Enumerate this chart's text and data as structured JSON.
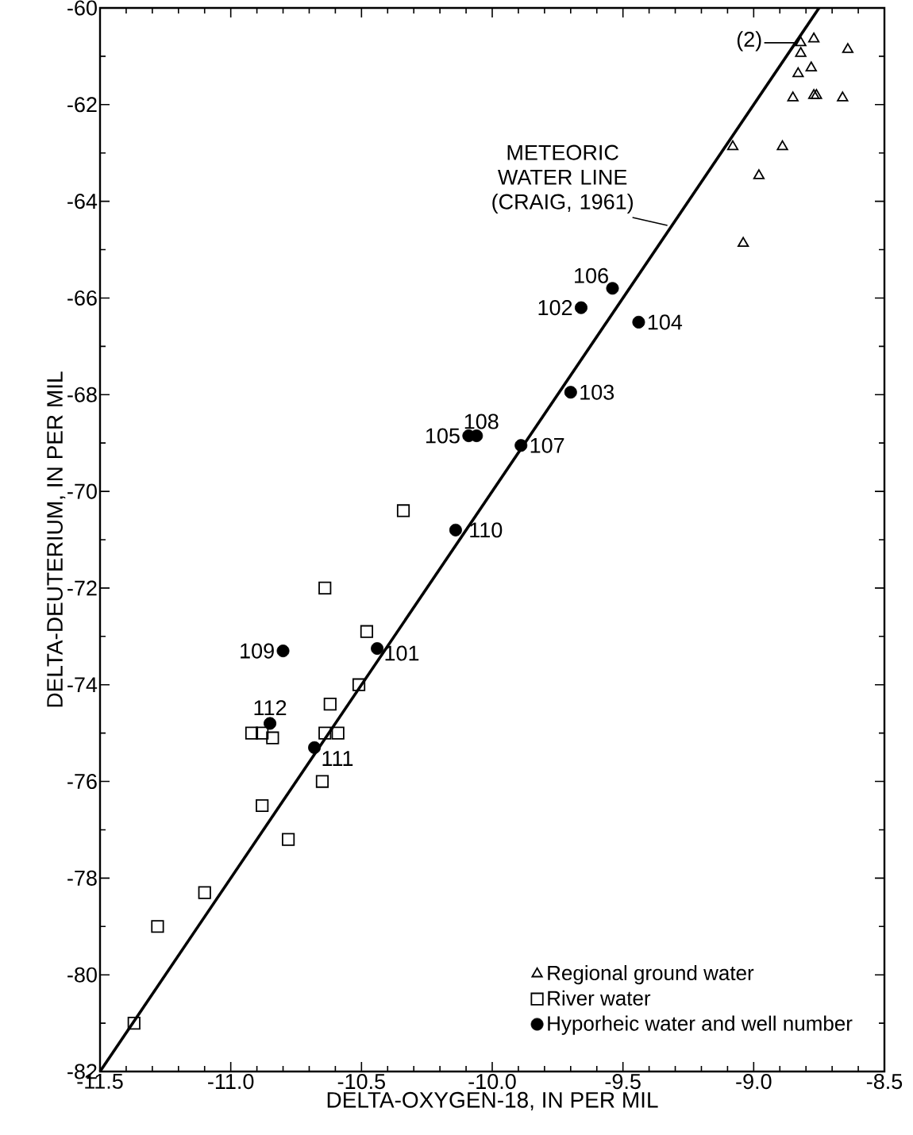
{
  "chart_data": {
    "type": "scatter",
    "xlabel": "DELTA-OXYGEN-18, IN PER MIL",
    "ylabel": "DELTA-DEUTERIUM, IN PER MIL",
    "xlim": [
      -11.5,
      -8.5
    ],
    "ylim": [
      -82,
      -60
    ],
    "xticks": [
      {
        "value": -11.5,
        "label": "-11.5"
      },
      {
        "value": -11,
        "label": "-11.0"
      },
      {
        "value": -10.5,
        "label": "-10.5"
      },
      {
        "value": -10,
        "label": "-10.0"
      },
      {
        "value": -9.5,
        "label": "-9.5"
      },
      {
        "value": -9,
        "label": "-9.0"
      },
      {
        "value": -8.5,
        "label": "-8.5"
      }
    ],
    "yticks": [
      -82,
      -80,
      -78,
      -76,
      -74,
      -72,
      -70,
      -68,
      -66,
      -64,
      -62,
      -60
    ],
    "legend": "bottom right",
    "series": [
      {
        "name": "Regional ground water",
        "color": "#000000",
        "marker": "triangle",
        "x": [
          -8.82,
          -8.77,
          -8.82,
          -8.64,
          -8.78,
          -8.83,
          -8.85,
          -8.77,
          -8.76,
          -8.66,
          -9.08,
          -8.89,
          -8.98,
          -9.04
        ],
        "values": [
          -60.72,
          -60.64,
          -60.94,
          -60.86,
          -61.24,
          -61.36,
          -61.86,
          -61.81,
          -61.81,
          -61.86,
          -62.87,
          -62.87,
          -63.47,
          -64.87
        ]
      },
      {
        "name": "River water",
        "color": "#000000",
        "marker": "square",
        "x": [
          -10.34,
          -10.64,
          -10.48,
          -10.51,
          -10.62,
          -10.92,
          -10.88,
          -10.84,
          -10.64,
          -10.59,
          -10.65,
          -10.88,
          -10.78,
          -11.1,
          -11.28,
          -11.37
        ],
        "values": [
          -70.4,
          -72.0,
          -72.9,
          -74.0,
          -74.4,
          -75.0,
          -75.0,
          -75.1,
          -75.0,
          -75.0,
          -76.0,
          -76.5,
          -77.2,
          -78.3,
          -79.0,
          -81.0
        ]
      },
      {
        "name": "Hyporheic water and well number",
        "color": "#000000",
        "marker": "circle",
        "x": [
          -10.44,
          -9.66,
          -9.7,
          -9.44,
          -10.09,
          -9.54,
          -9.89,
          -10.06,
          -10.8,
          -10.14,
          -10.68,
          -10.85
        ],
        "values": [
          -73.25,
          -66.2,
          -67.95,
          -66.5,
          -68.85,
          -65.8,
          -69.05,
          -68.85,
          -73.3,
          -70.8,
          -75.3,
          -74.8
        ]
      },
      {
        "type": "line",
        "color": "#000000",
        "marker": "none",
        "x": [
          -11.5,
          -8.75
        ],
        "values": [
          -82,
          -60
        ]
      }
    ],
    "annotations": [
      {
        "text": "METEORIC WATER LINE (CRAIG, 1961)",
        "x": -9.33,
        "y": -64.5
      },
      {
        "text": "(2)",
        "x": -8.82,
        "y": -60.72
      },
      {
        "text": "101",
        "x": -10.44,
        "y": -73.25
      },
      {
        "text": "102",
        "x": -9.66,
        "y": -66.2
      },
      {
        "text": "103",
        "x": -9.7,
        "y": -67.95
      },
      {
        "text": "104",
        "x": -9.44,
        "y": -66.5
      },
      {
        "text": "105",
        "x": -10.09,
        "y": -68.85
      },
      {
        "text": "106",
        "x": -9.54,
        "y": -65.8
      },
      {
        "text": "107",
        "x": -9.89,
        "y": -69.05
      },
      {
        "text": "108",
        "x": -10.06,
        "y": -68.85
      },
      {
        "text": "109",
        "x": -10.8,
        "y": -73.3
      },
      {
        "text": "110",
        "x": -10.14,
        "y": -70.8
      },
      {
        "text": "111",
        "x": -10.68,
        "y": -75.3
      },
      {
        "text": "112",
        "x": -10.85,
        "y": -74.8
      }
    ]
  }
}
